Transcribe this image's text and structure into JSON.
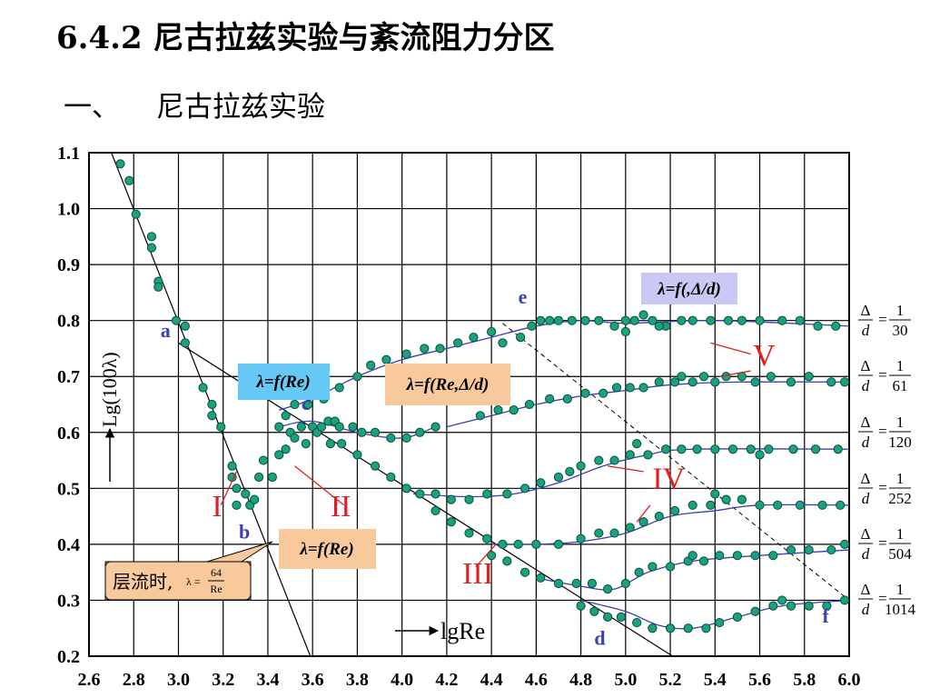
{
  "title": "6.4.2  尼古拉兹实验与紊流阻力分区",
  "subtitle": {
    "number": "一、",
    "text": "尼古拉兹实验"
  },
  "colors": {
    "points": "#1aa27f",
    "curves": "#3b3fb5",
    "roman": "#e02020",
    "box_blue": "#66c9f5",
    "box_tan": "#f8c99d",
    "box_lavender": "#c9c9f5"
  },
  "chart_data": {
    "type": "scatter",
    "title": "",
    "xlabel": "lgRe",
    "ylabel": "Lg(100λ)",
    "xlim": [
      2.6,
      6.0
    ],
    "ylim": [
      0.2,
      1.1
    ],
    "x_ticks": [
      "2.6",
      "2.8",
      "3.0",
      "3.2",
      "3.4",
      "3.6",
      "3.8",
      "4.0",
      "4.2",
      "4.4",
      "4.6",
      "4.8",
      "5.0",
      "5.2",
      "5.4",
      "5.6",
      "5.8",
      "6.0"
    ],
    "y_ticks": [
      "0.2",
      "0.3",
      "0.4",
      "0.5",
      "0.6",
      "0.7",
      "0.8",
      "0.9",
      "1.0",
      "1.1"
    ],
    "grid": true,
    "points": [
      [
        2.74,
        1.08
      ],
      [
        2.78,
        1.05
      ],
      [
        2.81,
        0.99
      ],
      [
        2.88,
        0.95
      ],
      [
        2.88,
        0.93
      ],
      [
        2.91,
        0.87
      ],
      [
        2.91,
        0.86
      ],
      [
        2.99,
        0.8
      ],
      [
        3.03,
        0.79
      ],
      [
        3.03,
        0.76
      ],
      [
        3.11,
        0.68
      ],
      [
        3.15,
        0.65
      ],
      [
        3.15,
        0.63
      ],
      [
        3.19,
        0.61
      ],
      [
        3.24,
        0.54
      ],
      [
        3.24,
        0.52
      ],
      [
        3.26,
        0.5
      ],
      [
        3.26,
        0.47
      ],
      [
        3.3,
        0.49
      ],
      [
        3.32,
        0.47
      ],
      [
        3.34,
        0.48
      ],
      [
        3.36,
        0.52
      ],
      [
        3.38,
        0.55
      ],
      [
        3.42,
        0.52
      ],
      [
        3.45,
        0.56
      ],
      [
        3.48,
        0.57
      ],
      [
        3.5,
        0.6
      ],
      [
        3.52,
        0.59
      ],
      [
        3.55,
        0.61
      ],
      [
        3.57,
        0.58
      ],
      [
        3.6,
        0.61
      ],
      [
        3.62,
        0.6
      ],
      [
        3.64,
        0.61
      ],
      [
        3.67,
        0.62
      ],
      [
        3.7,
        0.62
      ],
      [
        3.68,
        0.58
      ],
      [
        3.72,
        0.61
      ],
      [
        3.78,
        0.61
      ],
      [
        3.82,
        0.6
      ],
      [
        3.88,
        0.6
      ],
      [
        3.95,
        0.59
      ],
      [
        4.02,
        0.59
      ],
      [
        4.08,
        0.6
      ],
      [
        4.15,
        0.61
      ],
      [
        3.45,
        0.61
      ],
      [
        3.48,
        0.63
      ],
      [
        3.52,
        0.65
      ],
      [
        3.58,
        0.65
      ],
      [
        3.65,
        0.66
      ],
      [
        3.72,
        0.68
      ],
      [
        3.8,
        0.7
      ],
      [
        3.86,
        0.72
      ],
      [
        3.93,
        0.73
      ],
      [
        4.02,
        0.74
      ],
      [
        4.1,
        0.75
      ],
      [
        4.17,
        0.75
      ],
      [
        4.25,
        0.76
      ],
      [
        4.32,
        0.77
      ],
      [
        4.4,
        0.78
      ],
      [
        4.45,
        0.76
      ],
      [
        4.53,
        0.77
      ],
      [
        4.58,
        0.79
      ],
      [
        4.62,
        0.8
      ],
      [
        4.66,
        0.8
      ],
      [
        4.7,
        0.8
      ],
      [
        4.76,
        0.8
      ],
      [
        4.82,
        0.8
      ],
      [
        4.88,
        0.8
      ],
      [
        4.95,
        0.79
      ],
      [
        5.0,
        0.8
      ],
      [
        5.04,
        0.8
      ],
      [
        5.08,
        0.81
      ],
      [
        5.12,
        0.8
      ],
      [
        5.18,
        0.79
      ],
      [
        5.25,
        0.8
      ],
      [
        5.3,
        0.8
      ],
      [
        5.38,
        0.8
      ],
      [
        5.46,
        0.8
      ],
      [
        5.52,
        0.8
      ],
      [
        5.6,
        0.8
      ],
      [
        5.7,
        0.8
      ],
      [
        5.78,
        0.8
      ],
      [
        5.86,
        0.79
      ],
      [
        5.94,
        0.79
      ],
      [
        5.0,
        0.78
      ],
      [
        5.15,
        0.79
      ],
      [
        4.35,
        0.63
      ],
      [
        4.43,
        0.64
      ],
      [
        4.5,
        0.64
      ],
      [
        4.57,
        0.65
      ],
      [
        4.66,
        0.66
      ],
      [
        4.74,
        0.66
      ],
      [
        4.82,
        0.67
      ],
      [
        4.9,
        0.67
      ],
      [
        4.96,
        0.68
      ],
      [
        5.02,
        0.68
      ],
      [
        5.08,
        0.68
      ],
      [
        5.15,
        0.69
      ],
      [
        5.22,
        0.69
      ],
      [
        5.3,
        0.69
      ],
      [
        5.35,
        0.7
      ],
      [
        5.4,
        0.69
      ],
      [
        5.45,
        0.7
      ],
      [
        5.52,
        0.7
      ],
      [
        5.58,
        0.69
      ],
      [
        5.65,
        0.7
      ],
      [
        5.74,
        0.69
      ],
      [
        5.82,
        0.7
      ],
      [
        5.92,
        0.69
      ],
      [
        5.98,
        0.69
      ],
      [
        5.25,
        0.7
      ],
      [
        3.73,
        0.58
      ],
      [
        3.8,
        0.56
      ],
      [
        3.88,
        0.54
      ],
      [
        3.95,
        0.52
      ],
      [
        4.02,
        0.5
      ],
      [
        4.08,
        0.49
      ],
      [
        4.15,
        0.49
      ],
      [
        4.22,
        0.48
      ],
      [
        4.3,
        0.48
      ],
      [
        4.38,
        0.49
      ],
      [
        4.47,
        0.49
      ],
      [
        4.55,
        0.5
      ],
      [
        4.62,
        0.51
      ],
      [
        4.7,
        0.52
      ],
      [
        4.75,
        0.53
      ],
      [
        4.8,
        0.54
      ],
      [
        4.88,
        0.55
      ],
      [
        4.95,
        0.55
      ],
      [
        5.02,
        0.56
      ],
      [
        5.1,
        0.56
      ],
      [
        5.18,
        0.57
      ],
      [
        5.25,
        0.57
      ],
      [
        5.32,
        0.57
      ],
      [
        5.4,
        0.57
      ],
      [
        5.48,
        0.57
      ],
      [
        5.56,
        0.57
      ],
      [
        5.64,
        0.57
      ],
      [
        5.75,
        0.57
      ],
      [
        5.85,
        0.57
      ],
      [
        5.95,
        0.57
      ],
      [
        5.05,
        0.58
      ],
      [
        5.6,
        0.56
      ],
      [
        4.15,
        0.46
      ],
      [
        4.22,
        0.44
      ],
      [
        4.3,
        0.42
      ],
      [
        4.38,
        0.41
      ],
      [
        4.45,
        0.4
      ],
      [
        4.52,
        0.4
      ],
      [
        4.6,
        0.4
      ],
      [
        4.7,
        0.4
      ],
      [
        4.8,
        0.41
      ],
      [
        4.88,
        0.42
      ],
      [
        4.95,
        0.42
      ],
      [
        5.02,
        0.43
      ],
      [
        5.08,
        0.44
      ],
      [
        5.15,
        0.45
      ],
      [
        5.22,
        0.46
      ],
      [
        5.3,
        0.47
      ],
      [
        5.38,
        0.47
      ],
      [
        5.45,
        0.48
      ],
      [
        5.52,
        0.48
      ],
      [
        5.6,
        0.47
      ],
      [
        5.68,
        0.47
      ],
      [
        5.78,
        0.47
      ],
      [
        5.88,
        0.47
      ],
      [
        5.96,
        0.47
      ],
      [
        5.4,
        0.49
      ],
      [
        4.4,
        0.38
      ],
      [
        4.47,
        0.37
      ],
      [
        4.55,
        0.35
      ],
      [
        4.62,
        0.34
      ],
      [
        4.7,
        0.33
      ],
      [
        4.78,
        0.33
      ],
      [
        4.85,
        0.33
      ],
      [
        4.92,
        0.32
      ],
      [
        5.0,
        0.33
      ],
      [
        5.06,
        0.35
      ],
      [
        5.12,
        0.36
      ],
      [
        5.2,
        0.36
      ],
      [
        5.28,
        0.37
      ],
      [
        5.35,
        0.37
      ],
      [
        5.42,
        0.38
      ],
      [
        5.5,
        0.38
      ],
      [
        5.58,
        0.38
      ],
      [
        5.66,
        0.38
      ],
      [
        5.74,
        0.39
      ],
      [
        5.82,
        0.39
      ],
      [
        5.92,
        0.39
      ],
      [
        5.98,
        0.4
      ],
      [
        5.3,
        0.38
      ],
      [
        4.8,
        0.29
      ],
      [
        4.86,
        0.28
      ],
      [
        4.92,
        0.27
      ],
      [
        4.98,
        0.27
      ],
      [
        5.05,
        0.26
      ],
      [
        5.12,
        0.25
      ],
      [
        5.2,
        0.25
      ],
      [
        5.28,
        0.25
      ],
      [
        5.36,
        0.25
      ],
      [
        5.42,
        0.26
      ],
      [
        5.5,
        0.27
      ],
      [
        5.58,
        0.28
      ],
      [
        5.66,
        0.29
      ],
      [
        5.74,
        0.29
      ],
      [
        5.82,
        0.29
      ],
      [
        5.9,
        0.29
      ],
      [
        5.98,
        0.3
      ],
      [
        5.7,
        0.3
      ]
    ],
    "curves": [
      [
        [
          3.45,
          0.61
        ],
        [
          3.6,
          0.62
        ],
        [
          3.8,
          0.6
        ],
        [
          4.0,
          0.59
        ],
        [
          4.15,
          0.61
        ]
      ],
      [
        [
          3.45,
          0.64
        ],
        [
          3.6,
          0.66
        ],
        [
          3.8,
          0.7
        ],
        [
          4.0,
          0.73
        ],
        [
          4.2,
          0.75
        ],
        [
          4.4,
          0.77
        ],
        [
          4.6,
          0.79
        ],
        [
          4.8,
          0.8
        ],
        [
          5.0,
          0.795
        ],
        [
          5.4,
          0.8
        ],
        [
          6.0,
          0.79
        ]
      ],
      [
        [
          4.2,
          0.61
        ],
        [
          4.4,
          0.63
        ],
        [
          4.6,
          0.65
        ],
        [
          4.8,
          0.665
        ],
        [
          5.0,
          0.675
        ],
        [
          5.2,
          0.685
        ],
        [
          5.5,
          0.69
        ],
        [
          6.0,
          0.69
        ]
      ],
      [
        [
          4.05,
          0.49
        ],
        [
          4.3,
          0.485
        ],
        [
          4.5,
          0.49
        ],
        [
          4.7,
          0.51
        ],
        [
          4.9,
          0.54
        ],
        [
          5.1,
          0.56
        ],
        [
          5.3,
          0.57
        ],
        [
          6.0,
          0.57
        ]
      ],
      [
        [
          4.4,
          0.4
        ],
        [
          4.6,
          0.4
        ],
        [
          4.8,
          0.405
        ],
        [
          5.0,
          0.42
        ],
        [
          5.2,
          0.45
        ],
        [
          5.4,
          0.46
        ],
        [
          5.6,
          0.47
        ],
        [
          6.0,
          0.47
        ]
      ],
      [
        [
          4.6,
          0.34
        ],
        [
          4.8,
          0.325
        ],
        [
          4.95,
          0.32
        ],
        [
          5.1,
          0.35
        ],
        [
          5.3,
          0.37
        ],
        [
          5.6,
          0.38
        ],
        [
          6.0,
          0.39
        ]
      ],
      [
        [
          4.8,
          0.3
        ],
        [
          5.0,
          0.28
        ],
        [
          5.15,
          0.255
        ],
        [
          5.3,
          0.25
        ],
        [
          5.5,
          0.27
        ],
        [
          5.7,
          0.29
        ],
        [
          6.0,
          0.3
        ]
      ]
    ],
    "laminar_line": [
      [
        2.7,
        1.1
      ],
      [
        3.6,
        0.19
      ]
    ],
    "blasius_line": [
      [
        3.0,
        0.76
      ],
      [
        5.25,
        0.19
      ]
    ],
    "dashed_line": [
      [
        4.45,
        0.795
      ],
      [
        6.0,
        0.3
      ]
    ],
    "point_labels": [
      {
        "text": "a",
        "x": 2.92,
        "y": 0.77
      },
      {
        "text": "b",
        "x": 3.27,
        "y": 0.41
      },
      {
        "text": "c",
        "x": 3.55,
        "y": 0.64
      },
      {
        "text": "d",
        "x": 4.86,
        "y": 0.22
      },
      {
        "text": "e",
        "x": 4.52,
        "y": 0.83
      },
      {
        "text": "f",
        "x": 5.88,
        "y": 0.26
      }
    ],
    "zone_labels": [
      {
        "text": "I",
        "x": 3.15,
        "y": 0.45
      },
      {
        "text": "II",
        "x": 3.68,
        "y": 0.45
      },
      {
        "text": "III",
        "x": 4.27,
        "y": 0.33
      },
      {
        "text": "IV",
        "x": 5.12,
        "y": 0.5
      },
      {
        "text": "V",
        "x": 5.57,
        "y": 0.72
      }
    ],
    "boxes": {
      "b1": "λ=f(Re)",
      "b2": "λ=f(Re,Δ/d)",
      "b3": "λ=f(,Δ/d)",
      "b4": "λ=f(Re)",
      "laminar": {
        "text": "层流时,",
        "lambda": "λ =",
        "num": "64",
        "den": "Re"
      }
    },
    "legend": [
      {
        "num": "1",
        "den": "30"
      },
      {
        "num": "1",
        "den": "61"
      },
      {
        "num": "1",
        "den": "120"
      },
      {
        "num": "1",
        "den": "252"
      },
      {
        "num": "1",
        "den": "504"
      },
      {
        "num": "1",
        "den": "1014"
      }
    ],
    "legend_symbol": "Δ",
    "legend_d": "d"
  }
}
